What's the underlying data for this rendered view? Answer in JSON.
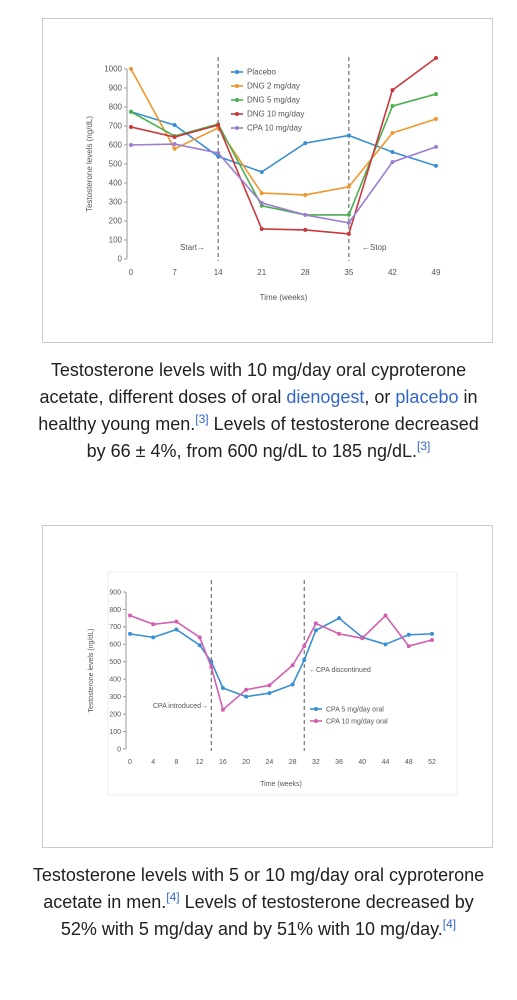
{
  "chart_data": [
    {
      "type": "line",
      "x": [
        0,
        7,
        14,
        21,
        28,
        35,
        42,
        49
      ],
      "xlim": [
        0,
        49
      ],
      "xticks": [
        0,
        7,
        14,
        21,
        28,
        35,
        42,
        49
      ],
      "ylim": [
        0,
        1000
      ],
      "yticks": [
        0,
        100,
        200,
        300,
        400,
        500,
        600,
        700,
        800,
        900,
        1000
      ],
      "y_label": "Testosterone levels (ng/dL)",
      "x_label": "Time (weeks)",
      "legend": "top-center",
      "vlines": [
        14,
        35
      ],
      "annotations": [
        "Start→",
        "←Stop"
      ],
      "series": [
        {
          "name": "Placebo",
          "color": "#3a8fd1",
          "values": [
            775,
            705,
            540,
            458,
            610,
            650,
            563,
            490
          ]
        },
        {
          "name": "DNG 2 mg/day",
          "color": "#f2962e",
          "values": [
            1000,
            580,
            690,
            347,
            337,
            380,
            663,
            737
          ]
        },
        {
          "name": "DNG 5 mg/day",
          "color": "#4caf50",
          "values": [
            775,
            647,
            710,
            280,
            232,
            232,
            805,
            868
          ]
        },
        {
          "name": "DNG 10 mg/day",
          "color": "#c8383c",
          "values": [
            695,
            642,
            705,
            158,
            153,
            132,
            889,
            1058
          ]
        },
        {
          "name": "CPA 10 mg/day",
          "color": "#9a7fd1",
          "values": [
            600,
            605,
            558,
            295,
            232,
            190,
            510,
            590
          ]
        }
      ]
    },
    {
      "type": "line",
      "x": [
        0,
        4,
        8,
        12,
        14,
        16,
        20,
        24,
        28,
        30,
        32,
        36,
        40,
        44,
        48,
        52
      ],
      "xlim": [
        0,
        52
      ],
      "xticks": [
        0,
        4,
        8,
        12,
        16,
        20,
        24,
        28,
        32,
        36,
        40,
        44,
        48,
        52
      ],
      "ylim": [
        0,
        900
      ],
      "yticks": [
        0,
        100,
        200,
        300,
        400,
        500,
        600,
        700,
        800,
        900
      ],
      "y_label": "Testosterone levels (ng/dL)",
      "x_label": "Time (weeks)",
      "legend": "bottom-right",
      "vlines": [
        14,
        30
      ],
      "annotations": [
        "CPA introduced→",
        "←CPA discontinued"
      ],
      "series": [
        {
          "name": "CPA 5 mg/day oral",
          "color": "#3a8fd1",
          "values": [
            660,
            640,
            685,
            595,
            500,
            350,
            300,
            320,
            370,
            510,
            680,
            750,
            640,
            600,
            655,
            660
          ]
        },
        {
          "name": "CPA 10 mg/day oral",
          "color": "#d35fae",
          "values": [
            765,
            715,
            730,
            640,
            470,
            225,
            340,
            365,
            480,
            590,
            720,
            660,
            635,
            765,
            590,
            625
          ]
        }
      ]
    }
  ],
  "captions": [
    [
      "Testosterone levels with 10 mg/day oral cyproterone acetate, different doses of oral ",
      "dienogest",
      ", or ",
      "placebo",
      " in healthy young men.",
      "[3]",
      " Levels of testosterone decreased by 66 ± 4%, from 600 ng/dL to 185 ng/dL.",
      "[3]"
    ],
    [
      "Testosterone levels with 5 or 10 mg/day oral cyproterone acetate in men.",
      "[4]",
      " Levels of testosterone decreased by 52% with 5 mg/day and by 51% with 10 mg/day.",
      "[4]"
    ]
  ]
}
